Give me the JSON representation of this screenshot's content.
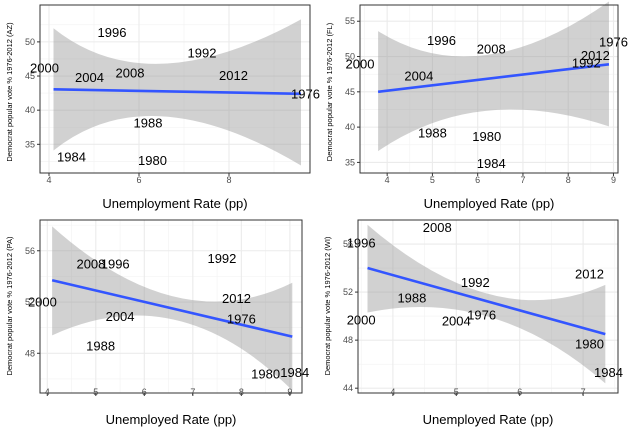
{
  "chart_data": [
    {
      "type": "scatter",
      "title": "",
      "xlabel": "Unemployment Rate (pp)",
      "ylabel": "Democrat popular vote % 1976-2012 (AZ)",
      "xlim": [
        3.8,
        9.8
      ],
      "ylim": [
        30.8,
        55.4
      ],
      "xticks": [
        "4",
        "6",
        "8"
      ],
      "yticks": [
        "35",
        "40",
        "45",
        "50"
      ],
      "points": [
        {
          "label": "1976",
          "x": 9.7,
          "y": 42.2
        },
        {
          "label": "1980",
          "x": 6.3,
          "y": 32.5
        },
        {
          "label": "1984",
          "x": 4.5,
          "y": 33.0
        },
        {
          "label": "1988",
          "x": 6.2,
          "y": 38.0
        },
        {
          "label": "1992",
          "x": 7.4,
          "y": 48.2
        },
        {
          "label": "1996",
          "x": 5.4,
          "y": 51.2
        },
        {
          "label": "2000",
          "x": 3.9,
          "y": 46.0
        },
        {
          "label": "2004",
          "x": 4.9,
          "y": 44.6
        },
        {
          "label": "2008",
          "x": 5.8,
          "y": 45.3
        },
        {
          "label": "2012",
          "x": 8.1,
          "y": 44.9
        }
      ],
      "fit": {
        "x": [
          4.1,
          9.6
        ],
        "y": [
          43.05,
          42.4
        ]
      },
      "ci": {
        "x": [
          4.1,
          6.2,
          9.6
        ],
        "upper": [
          52.0,
          46.8,
          53.3
        ],
        "lower": [
          34.1,
          39.1,
          31.9
        ]
      }
    },
    {
      "type": "scatter",
      "title": "",
      "xlabel": "Unemployed Rate (pp)",
      "ylabel": "Democrat popular vote % 1976-2012 (FL)",
      "xlim": [
        3.4,
        9.1
      ],
      "ylim": [
        33.5,
        57.3
      ],
      "xticks": [
        "4",
        "5",
        "6",
        "7",
        "8",
        "9"
      ],
      "yticks": [
        "35",
        "40",
        "45",
        "50",
        "55"
      ],
      "points": [
        {
          "label": "1976",
          "x": 9.0,
          "y": 51.9
        },
        {
          "label": "1980",
          "x": 6.2,
          "y": 38.5
        },
        {
          "label": "1984",
          "x": 6.3,
          "y": 34.7
        },
        {
          "label": "1988",
          "x": 5.0,
          "y": 39.0
        },
        {
          "label": "1992",
          "x": 8.4,
          "y": 48.9
        },
        {
          "label": "1996",
          "x": 5.2,
          "y": 52.1
        },
        {
          "label": "2000",
          "x": 3.4,
          "y": 48.8
        },
        {
          "label": "2004",
          "x": 4.7,
          "y": 47.1
        },
        {
          "label": "2008",
          "x": 6.3,
          "y": 50.9
        },
        {
          "label": "2012",
          "x": 8.6,
          "y": 50.0
        }
      ],
      "fit": {
        "x": [
          3.8,
          8.9
        ],
        "y": [
          45.0,
          48.9
        ]
      },
      "ci": {
        "x": [
          3.8,
          6.0,
          8.9
        ],
        "upper": [
          53.6,
          50.2,
          57.8
        ],
        "lower": [
          36.6,
          42.3,
          40.1
        ]
      }
    },
    {
      "type": "scatter",
      "title": "",
      "xlabel": "Unemployed Rate (pp)",
      "ylabel": "Democrat popular vote % 1976-2012 (PA)",
      "xlim": [
        3.85,
        9.25
      ],
      "ylim": [
        44.9,
        58.4
      ],
      "xticks": [
        "4",
        "5",
        "6",
        "7",
        "8",
        "9"
      ],
      "yticks": [
        "48",
        "52",
        "56"
      ],
      "points": [
        {
          "label": "1976",
          "x": 8.0,
          "y": 50.6
        },
        {
          "label": "1980",
          "x": 8.5,
          "y": 46.3
        },
        {
          "label": "1984",
          "x": 9.1,
          "y": 46.4
        },
        {
          "label": "1988",
          "x": 5.1,
          "y": 48.5
        },
        {
          "label": "1992",
          "x": 7.6,
          "y": 55.3
        },
        {
          "label": "1996",
          "x": 5.4,
          "y": 54.9
        },
        {
          "label": "2000",
          "x": 3.9,
          "y": 51.9
        },
        {
          "label": "2004",
          "x": 5.5,
          "y": 50.8
        },
        {
          "label": "2008",
          "x": 4.9,
          "y": 54.9
        },
        {
          "label": "2012",
          "x": 7.9,
          "y": 52.2
        }
      ],
      "fit": {
        "x": [
          4.1,
          9.05
        ],
        "y": [
          53.7,
          49.3
        ]
      },
      "ci": {
        "x": [
          4.1,
          6.7,
          9.05
        ],
        "upper": [
          57.9,
          52.4,
          53.5
        ],
        "lower": [
          49.4,
          50.6,
          45.1
        ]
      }
    },
    {
      "type": "scatter",
      "title": "",
      "xlabel": "Unemployed Rate (pp)",
      "ylabel": "Democrat popular vote % 1976-2012 (WI)",
      "xlim": [
        3.45,
        7.55
      ],
      "ylim": [
        43.6,
        58.0
      ],
      "xticks": [
        "4",
        "5",
        "6",
        "7"
      ],
      "yticks": [
        "44",
        "48",
        "52",
        "56"
      ],
      "points": [
        {
          "label": "1976",
          "x": 5.4,
          "y": 50.0
        },
        {
          "label": "1980",
          "x": 7.1,
          "y": 47.6
        },
        {
          "label": "1984",
          "x": 7.4,
          "y": 45.2
        },
        {
          "label": "1988",
          "x": 4.3,
          "y": 51.4
        },
        {
          "label": "1992",
          "x": 5.3,
          "y": 52.7
        },
        {
          "label": "1996",
          "x": 3.5,
          "y": 56.0
        },
        {
          "label": "2000",
          "x": 3.5,
          "y": 49.6
        },
        {
          "label": "2004",
          "x": 5.0,
          "y": 49.5
        },
        {
          "label": "2008",
          "x": 4.7,
          "y": 57.3
        },
        {
          "label": "2012",
          "x": 7.1,
          "y": 53.4
        }
      ],
      "fit": {
        "x": [
          3.6,
          7.35
        ],
        "y": [
          54.0,
          48.5
        ]
      },
      "ci": {
        "x": [
          3.6,
          5.6,
          7.35
        ],
        "upper": [
          57.6,
          51.8,
          52.6
        ],
        "lower": [
          50.3,
          49.9,
          44.4
        ]
      }
    }
  ]
}
